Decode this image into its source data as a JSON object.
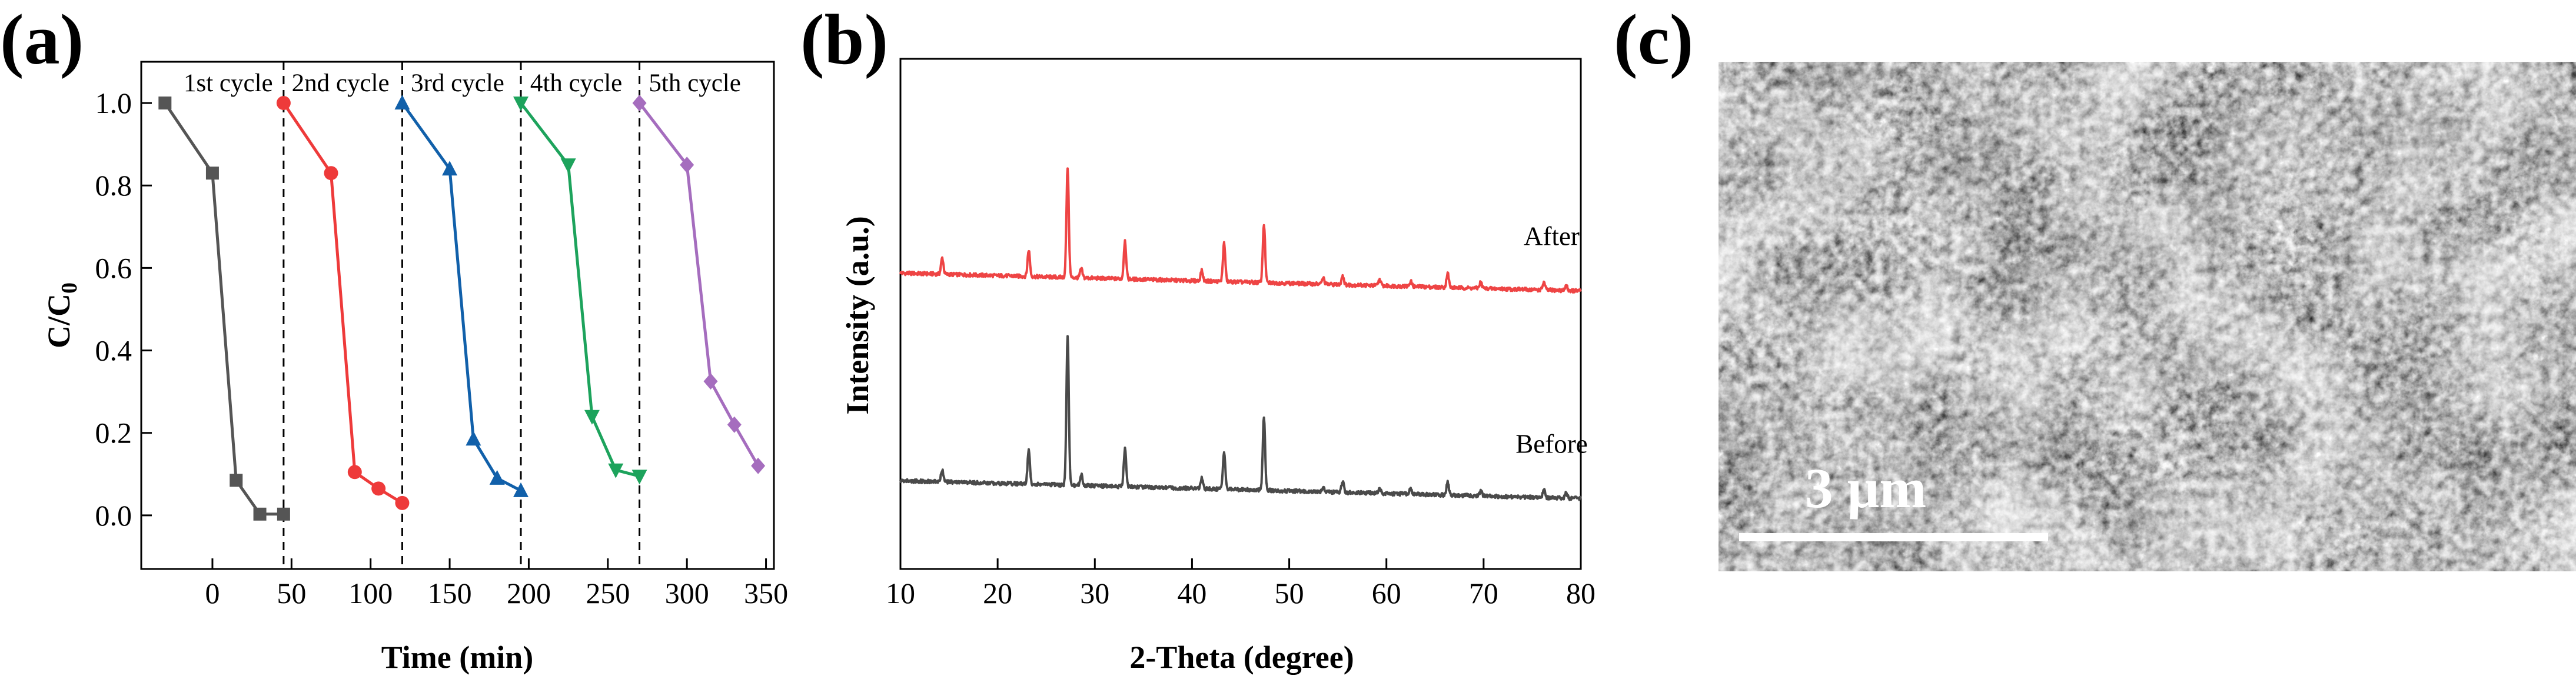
{
  "panels": {
    "a": {
      "letter": "(a)"
    },
    "b": {
      "letter": "(b)"
    },
    "c": {
      "letter": "(c)",
      "scale_bar_label": "3 μm"
    }
  },
  "colors": {
    "cycle1": "#555555",
    "cycle2": "#ee3a3a",
    "cycle3": "#1160aa",
    "cycle4": "#1da35c",
    "cycle5": "#a56dbe",
    "before": "#4a4a4a",
    "after": "#ee4444"
  },
  "chart_data": [
    {
      "id": "a",
      "type": "line",
      "title": "",
      "xlabel": "Time (min)",
      "ylabel_main": "C/C",
      "ylabel_sub": "0",
      "xlim": [
        -45,
        355
      ],
      "ylim": [
        -0.13,
        1.1
      ],
      "xticks": [
        0,
        50,
        100,
        150,
        200,
        250,
        300,
        350
      ],
      "yticks": [
        0.0,
        0.2,
        0.4,
        0.6,
        0.8,
        1.0
      ],
      "ytick_labels": [
        "0.0",
        "0.2",
        "0.4",
        "0.6",
        "0.8",
        "1.0"
      ],
      "separators_x": [
        45,
        120,
        195,
        270
      ],
      "series": [
        {
          "name": "1st cycle",
          "label_x": 10,
          "marker": "square",
          "color_key": "cycle1",
          "x": [
            -30,
            0,
            15,
            30,
            45
          ],
          "y": [
            1.0,
            0.83,
            0.085,
            0.003,
            0.003
          ]
        },
        {
          "name": "2nd cycle",
          "label_x": 81,
          "marker": "circle",
          "color_key": "cycle2",
          "x": [
            45,
            75,
            90,
            105,
            120
          ],
          "y": [
            1.0,
            0.83,
            0.105,
            0.065,
            0.03
          ]
        },
        {
          "name": "3rd cycle",
          "label_x": 155,
          "marker": "triangle-up",
          "color_key": "cycle3",
          "x": [
            120,
            150,
            165,
            180,
            195
          ],
          "y": [
            1.0,
            0.84,
            0.185,
            0.09,
            0.06
          ]
        },
        {
          "name": "4th cycle",
          "label_x": 230,
          "marker": "triangle-down",
          "color_key": "cycle4",
          "x": [
            195,
            225,
            240,
            255,
            270
          ],
          "y": [
            1.0,
            0.85,
            0.24,
            0.11,
            0.095
          ]
        },
        {
          "name": "5th cycle",
          "label_x": 305,
          "marker": "diamond",
          "color_key": "cycle5",
          "x": [
            270,
            300,
            315,
            330,
            345
          ],
          "y": [
            1.0,
            0.85,
            0.325,
            0.22,
            0.12
          ]
        }
      ]
    },
    {
      "id": "b",
      "type": "line",
      "title": "",
      "xlabel": "2-Theta (degree)",
      "ylabel": "Intensity (a.u.)",
      "xlim": [
        10,
        80
      ],
      "ylim": [
        0,
        100
      ],
      "xticks": [
        10,
        20,
        30,
        40,
        50,
        60,
        70,
        80
      ],
      "yticks_shown": false,
      "series": [
        {
          "name": "After",
          "color_key": "after",
          "label_x": 77,
          "baseline": 58,
          "base_drop": 3.5,
          "peaks": [
            [
              14.3,
              3.2
            ],
            [
              23.2,
              5.2
            ],
            [
              27.2,
              21.5
            ],
            [
              28.6,
              1.8
            ],
            [
              33.1,
              7.5
            ],
            [
              41.0,
              2.0
            ],
            [
              43.3,
              7.5
            ],
            [
              47.4,
              11.5
            ],
            [
              53.5,
              1.2
            ],
            [
              55.5,
              1.8
            ],
            [
              59.3,
              1.2
            ],
            [
              62.5,
              1.0
            ],
            [
              66.3,
              2.8
            ],
            [
              69.7,
              1.2
            ],
            [
              76.2,
              1.5
            ],
            [
              78.5,
              1.0
            ]
          ]
        },
        {
          "name": "Before",
          "color_key": "before",
          "label_x": 77,
          "baseline": 17.3,
          "base_drop": 3.5,
          "peaks": [
            [
              14.3,
              2.3
            ],
            [
              23.2,
              6.5
            ],
            [
              27.2,
              29.5
            ],
            [
              28.6,
              2.2
            ],
            [
              33.1,
              7.5
            ],
            [
              41.0,
              2.0
            ],
            [
              43.3,
              7.5
            ],
            [
              47.4,
              14.5
            ],
            [
              53.5,
              1.0
            ],
            [
              55.5,
              2.2
            ],
            [
              59.3,
              1.0
            ],
            [
              62.5,
              1.0
            ],
            [
              66.3,
              2.6
            ],
            [
              69.7,
              1.0
            ],
            [
              76.2,
              1.5
            ],
            [
              78.5,
              1.0
            ]
          ]
        }
      ]
    }
  ]
}
